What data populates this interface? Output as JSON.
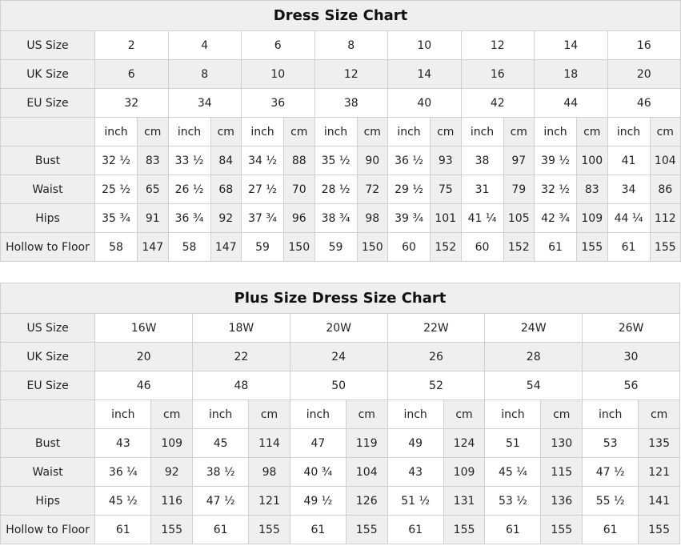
{
  "standard_chart": {
    "title": "Dress Size Chart",
    "us_label": "US Size",
    "uk_label": "UK Size",
    "eu_label": "EU Size",
    "us": [
      "2",
      "4",
      "6",
      "8",
      "10",
      "12",
      "14",
      "16"
    ],
    "uk": [
      "6",
      "8",
      "10",
      "12",
      "14",
      "16",
      "18",
      "20"
    ],
    "eu": [
      "32",
      "34",
      "36",
      "38",
      "40",
      "42",
      "44",
      "46"
    ],
    "unit_inch": "inch",
    "unit_cm": "cm",
    "measurements": [
      {
        "label": "Bust",
        "values": [
          "32 ½",
          "83",
          "33 ½",
          "84",
          "34 ½",
          "88",
          "35 ½",
          "90",
          "36 ½",
          "93",
          "38",
          "97",
          "39 ½",
          "100",
          "41",
          "104"
        ]
      },
      {
        "label": "Waist",
        "values": [
          "25 ½",
          "65",
          "26 ½",
          "68",
          "27 ½",
          "70",
          "28 ½",
          "72",
          "29 ½",
          "75",
          "31",
          "79",
          "32 ½",
          "83",
          "34",
          "86"
        ]
      },
      {
        "label": "Hips",
        "values": [
          "35 ¾",
          "91",
          "36 ¾",
          "92",
          "37 ¾",
          "96",
          "38 ¾",
          "98",
          "39 ¾",
          "101",
          "41 ¼",
          "105",
          "42 ¾",
          "109",
          "44 ¼",
          "112"
        ]
      },
      {
        "label": "Hollow to Floor",
        "values": [
          "58",
          "147",
          "58",
          "147",
          "59",
          "150",
          "59",
          "150",
          "60",
          "152",
          "60",
          "152",
          "61",
          "155",
          "61",
          "155"
        ]
      }
    ]
  },
  "plus_chart": {
    "title": "Plus Size Dress Size Chart",
    "us_label": "US Size",
    "uk_label": "UK Size",
    "eu_label": "EU Size",
    "us": [
      "16W",
      "18W",
      "20W",
      "22W",
      "24W",
      "26W"
    ],
    "uk": [
      "20",
      "22",
      "24",
      "26",
      "28",
      "30"
    ],
    "eu": [
      "46",
      "48",
      "50",
      "52",
      "54",
      "56"
    ],
    "unit_inch": "inch",
    "unit_cm": "cm",
    "measurements": [
      {
        "label": "Bust",
        "values": [
          "43",
          "109",
          "45",
          "114",
          "47",
          "119",
          "49",
          "124",
          "51",
          "130",
          "53",
          "135"
        ]
      },
      {
        "label": "Waist",
        "values": [
          "36 ¼",
          "92",
          "38 ½",
          "98",
          "40 ¾",
          "104",
          "43",
          "109",
          "45 ¼",
          "115",
          "47 ½",
          "121"
        ]
      },
      {
        "label": "Hips",
        "values": [
          "45 ½",
          "116",
          "47 ½",
          "121",
          "49 ½",
          "126",
          "51 ½",
          "131",
          "53 ½",
          "136",
          "55 ½",
          "141"
        ]
      },
      {
        "label": "Hollow to Floor",
        "values": [
          "61",
          "155",
          "61",
          "155",
          "61",
          "155",
          "61",
          "155",
          "61",
          "155",
          "61",
          "155"
        ]
      }
    ]
  }
}
